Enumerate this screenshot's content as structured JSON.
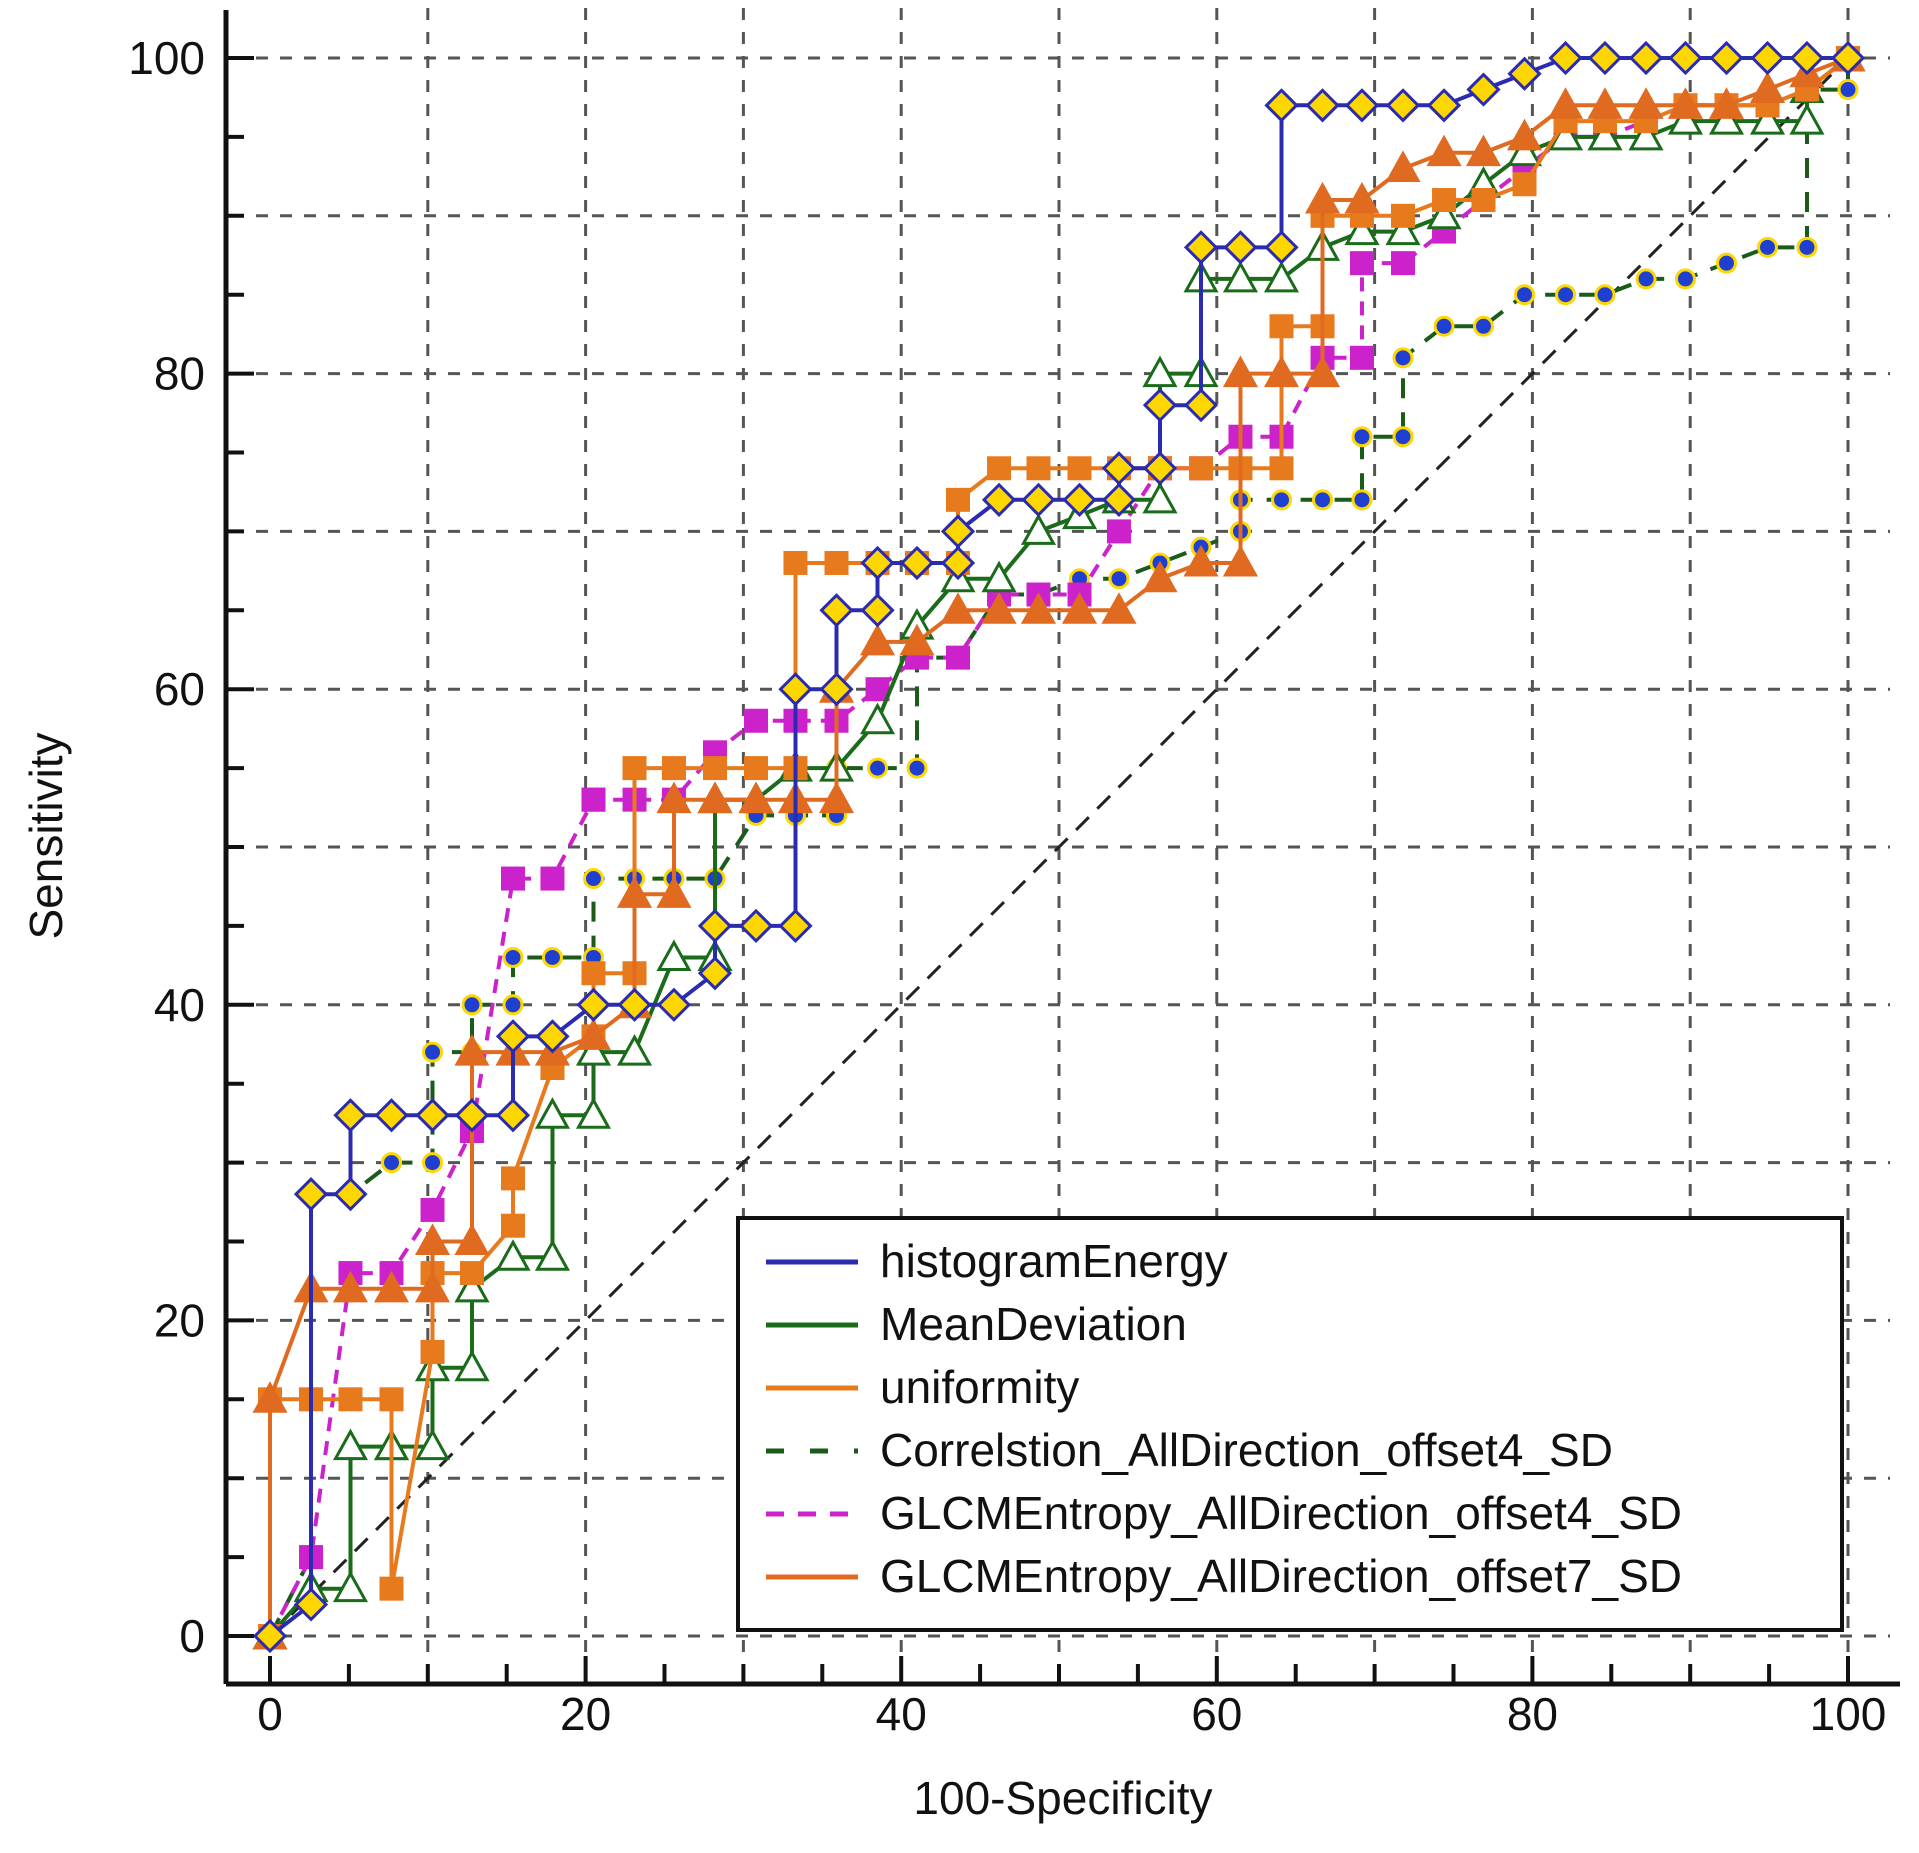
{
  "chart_data": {
    "type": "line",
    "xlabel": "100-Specificity",
    "ylabel": "Sensitivity",
    "xlim": [
      0,
      100
    ],
    "ylim": [
      0,
      100
    ],
    "xticks": [
      "0",
      "20",
      "40",
      "60",
      "80",
      "100"
    ],
    "yticks": [
      "0",
      "20",
      "40",
      "60",
      "80",
      "100"
    ],
    "grid": true,
    "legend_position": "bottom-right",
    "reference_line": {
      "x": [
        0,
        100
      ],
      "y": [
        0,
        100
      ]
    },
    "series": [
      {
        "name": "histogramEnergy",
        "color": "#2b2bb0",
        "marker_fill": "#ffd700",
        "marker": "diamond",
        "x": [
          0,
          2.6,
          2.6,
          5.1,
          5.1,
          7.7,
          10.3,
          10.3,
          12.8,
          12.8,
          15.4,
          15.4,
          17.9,
          20.5,
          23.1,
          25.6,
          28.2,
          28.2,
          30.8,
          33.3,
          33.3,
          35.9,
          35.9,
          38.5,
          38.5,
          41,
          43.6,
          43.6,
          46.2,
          48.7,
          51.3,
          53.8,
          53.8,
          56.4,
          56.4,
          59,
          59,
          61.5,
          64.1,
          64.1,
          66.7,
          69.2,
          71.8,
          74.4,
          76.9,
          79.5,
          82.1,
          84.6,
          87.2,
          89.7,
          92.3,
          94.9,
          97.4,
          100
        ],
        "y": [
          0,
          2,
          28,
          28,
          33,
          33,
          33,
          33,
          33,
          33,
          33,
          38,
          38,
          40,
          40,
          40,
          42,
          45,
          45,
          45,
          60,
          60,
          65,
          65,
          68,
          68,
          68,
          70,
          72,
          72,
          72,
          72,
          74,
          74,
          78,
          78,
          88,
          88,
          88,
          97,
          97,
          97,
          97,
          97,
          98,
          99,
          100,
          100,
          100,
          100,
          100,
          100,
          100,
          100
        ]
      },
      {
        "name": "MeanDeviation",
        "color": "#1a6b1a",
        "marker_fill": "#ffffff",
        "marker": "triangle",
        "x": [
          0,
          2.6,
          5.1,
          5.1,
          7.7,
          7.7,
          10.3,
          10.3,
          12.8,
          12.8,
          15.4,
          17.9,
          17.9,
          20.5,
          20.5,
          23.1,
          25.6,
          28.2,
          28.2,
          30.8,
          33.3,
          35.9,
          38.5,
          41,
          43.6,
          46.2,
          48.7,
          51.3,
          53.8,
          56.4,
          56.4,
          59,
          59,
          61.5,
          64.1,
          66.7,
          69.2,
          71.8,
          74.4,
          76.9,
          79.5,
          82.1,
          84.6,
          87.2,
          89.7,
          92.3,
          94.9,
          97.4,
          97.4,
          100
        ],
        "y": [
          0,
          3,
          3,
          12,
          12,
          12,
          12,
          17,
          17,
          22,
          24,
          24,
          33,
          33,
          37,
          37,
          43,
          43,
          53,
          53,
          55,
          55,
          58,
          64,
          67,
          67,
          70,
          71,
          72,
          72,
          80,
          80,
          86,
          86,
          86,
          88,
          89,
          89,
          90,
          92,
          94,
          95,
          95,
          95,
          96,
          96,
          96,
          96,
          98,
          100
        ]
      },
      {
        "name": "uniformity",
        "color": "#e87a1e",
        "marker_fill": "#e87a1e",
        "marker": "square",
        "x": [
          0,
          0,
          2.6,
          5.1,
          7.7,
          7.7,
          10.3,
          10.3,
          12.8,
          15.4,
          15.4,
          17.9,
          17.9,
          20.5,
          20.5,
          23.1,
          23.1,
          25.6,
          28.2,
          30.8,
          33.3,
          33.3,
          35.9,
          38.5,
          41,
          43.6,
          43.6,
          46.2,
          48.7,
          51.3,
          53.8,
          56.4,
          59,
          61.5,
          64.1,
          64.1,
          66.7,
          66.7,
          69.2,
          71.8,
          74.4,
          76.9,
          79.5,
          82.1,
          84.6,
          87.2,
          89.7,
          92.3,
          94.9,
          97.4,
          100
        ],
        "y": [
          0,
          15,
          15,
          15,
          15,
          3,
          18,
          23,
          23,
          26,
          29,
          36,
          36,
          38,
          42,
          42,
          55,
          55,
          55,
          55,
          55,
          68,
          68,
          68,
          68,
          68,
          72,
          74,
          74,
          74,
          74,
          74,
          74,
          74,
          74,
          83,
          83,
          90,
          90,
          90,
          91,
          91,
          92,
          96,
          96,
          96,
          97,
          97,
          97,
          98,
          100
        ]
      },
      {
        "name": "Correlstion_AllDirection_offset4_SD",
        "color": "#1a5b1a",
        "marker_fill": "#1f3fd0",
        "marker": "circle",
        "x": [
          0,
          2.6,
          2.6,
          5.1,
          7.7,
          7.7,
          10.3,
          10.3,
          12.8,
          12.8,
          15.4,
          15.4,
          17.9,
          20.5,
          20.5,
          23.1,
          25.6,
          28.2,
          30.8,
          33.3,
          35.9,
          35.9,
          38.5,
          41,
          41,
          43.6,
          46.2,
          48.7,
          51.3,
          53.8,
          56.4,
          59,
          61.5,
          61.5,
          64.1,
          66.7,
          69.2,
          69.2,
          71.8,
          71.8,
          74.4,
          76.9,
          79.5,
          82.1,
          84.6,
          87.2,
          89.7,
          92.3,
          94.9,
          97.4,
          97.4,
          100,
          100
        ],
        "y": [
          0,
          5,
          28,
          28,
          30,
          30,
          30,
          37,
          37,
          40,
          40,
          43,
          43,
          43,
          48,
          48,
          48,
          48,
          52,
          52,
          52,
          55,
          55,
          55,
          62,
          62,
          66,
          66,
          67,
          67,
          68,
          69,
          70,
          72,
          72,
          72,
          72,
          76,
          76,
          81,
          83,
          83,
          85,
          85,
          85,
          86,
          86,
          87,
          88,
          88,
          98,
          98,
          100
        ]
      },
      {
        "name": "GLCMEntropy_AllDirection_offset4_SD",
        "color": "#cc22cc",
        "marker_fill": "#cc22cc",
        "marker": "square",
        "x": [
          0,
          2.6,
          5.1,
          7.7,
          10.3,
          12.8,
          15.4,
          17.9,
          20.5,
          20.5,
          23.1,
          25.6,
          28.2,
          30.8,
          33.3,
          35.9,
          38.5,
          41,
          43.6,
          46.2,
          48.7,
          51.3,
          53.8,
          56.4,
          59,
          61.5,
          64.1,
          66.7,
          69.2,
          69.2,
          71.8,
          74.4,
          76.9,
          79.5,
          82.1,
          84.6,
          87.2,
          89.7,
          92.3,
          94.9,
          97.4,
          100
        ],
        "y": [
          0,
          5,
          23,
          23,
          27,
          32,
          48,
          48,
          53,
          53,
          53,
          53,
          56,
          58,
          58,
          58,
          60,
          62,
          62,
          66,
          66,
          66,
          70,
          74,
          74,
          76,
          76,
          81,
          81,
          87,
          87,
          89,
          91,
          93,
          95,
          95,
          96,
          97,
          97,
          97,
          98,
          100
        ]
      },
      {
        "name": "GLCMEntropy_AllDirection_offset7_SD",
        "color": "#e06a20",
        "marker_fill": "#e06a20",
        "marker": "triangle",
        "x": [
          0,
          0,
          2.6,
          5.1,
          7.7,
          10.3,
          10.3,
          12.8,
          12.8,
          15.4,
          17.9,
          20.5,
          23.1,
          23.1,
          25.6,
          25.6,
          28.2,
          30.8,
          33.3,
          35.9,
          35.9,
          38.5,
          41,
          43.6,
          46.2,
          48.7,
          51.3,
          53.8,
          56.4,
          59,
          61.5,
          61.5,
          64.1,
          66.7,
          66.7,
          69.2,
          71.8,
          74.4,
          76.9,
          79.5,
          82.1,
          84.6,
          87.2,
          89.7,
          92.3,
          94.9,
          97.4,
          100
        ],
        "y": [
          0,
          15,
          22,
          22,
          22,
          22,
          25,
          25,
          37,
          37,
          37,
          38,
          40,
          47,
          47,
          53,
          53,
          53,
          53,
          53,
          60,
          63,
          63,
          65,
          65,
          65,
          65,
          65,
          67,
          68,
          68,
          80,
          80,
          80,
          91,
          91,
          93,
          94,
          94,
          95,
          97,
          97,
          97,
          97,
          97,
          98,
          99,
          100
        ]
      }
    ]
  }
}
